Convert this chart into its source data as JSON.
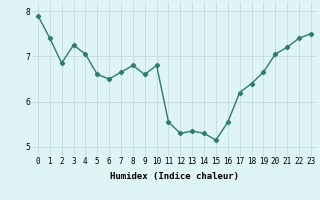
{
  "x": [
    0,
    1,
    2,
    3,
    4,
    5,
    6,
    7,
    8,
    9,
    10,
    11,
    12,
    13,
    14,
    15,
    16,
    17,
    18,
    19,
    20,
    21,
    22,
    23
  ],
  "y": [
    7.9,
    7.4,
    6.85,
    7.25,
    7.05,
    6.6,
    6.5,
    6.65,
    6.8,
    6.6,
    6.8,
    5.55,
    5.3,
    5.35,
    5.3,
    5.15,
    5.55,
    6.2,
    6.4,
    6.65,
    7.05,
    7.2,
    7.4,
    7.5
  ],
  "line_color": "#2d7d6e",
  "marker": "D",
  "markersize": 2.2,
  "linewidth": 1.0,
  "xlabel": "Humidex (Indice chaleur)",
  "xlim": [
    -0.5,
    23.5
  ],
  "ylim": [
    4.8,
    8.2
  ],
  "yticks": [
    5,
    6,
    7,
    8
  ],
  "bg_color": "#dff4f4",
  "grid_color": "#c0d8d8",
  "label_fontsize": 6.5,
  "tick_fontsize": 5.5
}
